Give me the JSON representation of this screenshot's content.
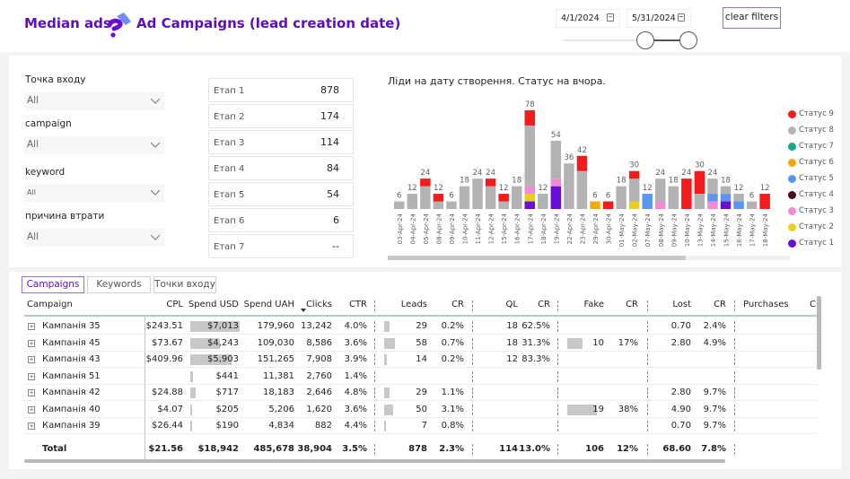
{
  "header": {
    "brand": "Median ads",
    "title": "Ad Campaigns (lead creation date)",
    "date_from": "4/1/2024",
    "date_to": "5/31/2024",
    "clear_filters": "clear filters",
    "accent_color": "#5b0fbe"
  },
  "slicers": [
    {
      "label": "Точка входу",
      "value": "All"
    },
    {
      "label": "campaign",
      "value": "All"
    },
    {
      "label": "keyword",
      "value": "All"
    },
    {
      "label": "причина втрати",
      "value": "All"
    }
  ],
  "stages": [
    {
      "label": "Етап 1",
      "value": "878"
    },
    {
      "label": "Етап 2",
      "value": "174"
    },
    {
      "label": "Етап 3",
      "value": "114"
    },
    {
      "label": "Етап 4",
      "value": "84"
    },
    {
      "label": "Етап 5",
      "value": "54"
    },
    {
      "label": "Етап 6",
      "value": "6"
    },
    {
      "label": "Етап 7",
      "value": "--"
    }
  ],
  "chart_data": {
    "type": "bar",
    "stacked": true,
    "title": "Ліди на дату створення. Статус на вчора.",
    "xlabel": "",
    "ylabel": "",
    "legend_position": "right",
    "categories": [
      "03-Apr-24",
      "04-Apr-24",
      "05-Apr-24",
      "08-Apr-24",
      "09-Apr-24",
      "10-Apr-24",
      "11-Apr-24",
      "12-Apr-24",
      "15-Apr-24",
      "16-Apr-24",
      "17-Apr-24",
      "18-Apr-24",
      "19-Apr-24",
      "22-Apr-24",
      "23-Apr-24",
      "29-Apr-24",
      "30-Apr-24",
      "01-May-24",
      "02-May-24",
      "07-May-24",
      "08-May-24",
      "09-May-24",
      "10-May-24",
      "13-May-24",
      "14-May-24",
      "15-May-24",
      "16-May-24",
      "17-May-24",
      "18-May-24"
    ],
    "totals": [
      6,
      12,
      24,
      12,
      6,
      18,
      24,
      24,
      12,
      18,
      78,
      12,
      54,
      36,
      42,
      6,
      6,
      18,
      30,
      12,
      24,
      18,
      24,
      30,
      24,
      18,
      12,
      6,
      12
    ],
    "series": [
      {
        "name": "Статус 1",
        "color": "#6a0dd6",
        "values": [
          0,
          0,
          0,
          0,
          0,
          0,
          0,
          0,
          0,
          0,
          6,
          0,
          18,
          0,
          0,
          0,
          0,
          0,
          0,
          0,
          0,
          0,
          0,
          0,
          0,
          6,
          0,
          0,
          0
        ]
      },
      {
        "name": "Статус 2",
        "color": "#e8cf20",
        "values": [
          0,
          0,
          0,
          0,
          0,
          0,
          0,
          0,
          0,
          0,
          6,
          0,
          0,
          0,
          0,
          0,
          0,
          0,
          6,
          0,
          0,
          0,
          0,
          0,
          0,
          0,
          0,
          0,
          0
        ]
      },
      {
        "name": "Статус 3",
        "color": "#f08bd6",
        "values": [
          0,
          0,
          0,
          0,
          0,
          0,
          0,
          0,
          0,
          0,
          6,
          0,
          6,
          0,
          0,
          0,
          0,
          0,
          0,
          0,
          6,
          0,
          0,
          0,
          6,
          0,
          0,
          0,
          0
        ]
      },
      {
        "name": "Статус 4",
        "color": "#4a0b1f",
        "values": [
          0,
          0,
          0,
          0,
          0,
          0,
          0,
          0,
          0,
          0,
          0,
          0,
          0,
          0,
          0,
          0,
          0,
          0,
          0,
          0,
          0,
          0,
          0,
          0,
          0,
          0,
          0,
          0,
          0
        ]
      },
      {
        "name": "Статус 5",
        "color": "#5b95f0",
        "values": [
          0,
          0,
          0,
          0,
          0,
          0,
          0,
          0,
          0,
          0,
          0,
          0,
          0,
          0,
          0,
          0,
          0,
          0,
          0,
          12,
          0,
          0,
          0,
          0,
          6,
          6,
          6,
          0,
          0
        ]
      },
      {
        "name": "Статус 6",
        "color": "#f5a80a",
        "values": [
          0,
          0,
          0,
          0,
          0,
          0,
          0,
          0,
          0,
          0,
          0,
          0,
          0,
          0,
          0,
          6,
          0,
          0,
          0,
          0,
          0,
          0,
          0,
          0,
          0,
          0,
          0,
          0,
          0
        ]
      },
      {
        "name": "Статус 7",
        "color": "#17a689",
        "values": [
          0,
          0,
          0,
          0,
          0,
          0,
          0,
          0,
          0,
          0,
          0,
          0,
          0,
          0,
          0,
          0,
          0,
          0,
          0,
          0,
          0,
          0,
          0,
          0,
          0,
          0,
          0,
          0,
          0
        ]
      },
      {
        "name": "Статус 8",
        "color": "#b3b3b3",
        "values": [
          6,
          12,
          18,
          6,
          6,
          18,
          24,
          18,
          6,
          18,
          48,
          12,
          30,
          36,
          30,
          0,
          0,
          18,
          18,
          0,
          18,
          18,
          0,
          12,
          12,
          6,
          6,
          6,
          0
        ]
      },
      {
        "name": "Статус 9",
        "color": "#f21c1c",
        "values": [
          0,
          0,
          6,
          6,
          0,
          0,
          0,
          6,
          6,
          0,
          12,
          0,
          0,
          0,
          12,
          0,
          6,
          0,
          6,
          0,
          0,
          0,
          24,
          18,
          0,
          0,
          0,
          0,
          12
        ]
      }
    ],
    "legend_order": [
      "Статус 9",
      "Статус 8",
      "Статус 7",
      "Статус 6",
      "Статус 5",
      "Статус 4",
      "Статус 3",
      "Статус 2",
      "Статус 1"
    ]
  },
  "tabs": [
    {
      "label": "Campaigns",
      "active": true
    },
    {
      "label": "Keywords",
      "active": false
    },
    {
      "label": "Точки входу",
      "active": false
    }
  ],
  "table": {
    "columns": [
      "Campaign",
      "CPL",
      "Spend USD",
      "Spend UAH",
      "Clicks",
      "CTR",
      "Leads",
      "CR",
      "QL",
      "CR",
      "Fake",
      "CR",
      "Lost",
      "CR",
      "Purchases",
      "C"
    ],
    "sorted_column": "Clicks",
    "rows": [
      {
        "name": "Кампанія 35",
        "cpl": "$243.51",
        "spend_usd": "$7,013",
        "spend_uah": "179,960",
        "clicks": "13,242",
        "ctr": "4.0%",
        "leads": "29",
        "leads_cr": "0.2%",
        "ql": "18",
        "ql_cr": "62.5%",
        "fake": "",
        "fake_cr": "",
        "lost": "0.70",
        "lost_cr": "2.4%",
        "purchases": "",
        "usd_ratio": 1.0,
        "leads_ratio": 0.5,
        "fake_ratio": 0
      },
      {
        "name": "Кампанія 45",
        "cpl": "$73.67",
        "spend_usd": "$4,243",
        "spend_uah": "109,030",
        "clicks": "8,586",
        "ctr": "3.6%",
        "leads": "58",
        "leads_cr": "0.7%",
        "ql": "18",
        "ql_cr": "31.3%",
        "fake": "10",
        "fake_cr": "17%",
        "lost": "2.80",
        "lost_cr": "4.9%",
        "purchases": "",
        "usd_ratio": 0.6,
        "leads_ratio": 1.0,
        "fake_ratio": 0.53
      },
      {
        "name": "Кампанія 43",
        "cpl": "$409.96",
        "spend_usd": "$5,903",
        "spend_uah": "151,265",
        "clicks": "7,908",
        "ctr": "3.9%",
        "leads": "14",
        "leads_cr": "0.2%",
        "ql": "12",
        "ql_cr": "83.3%",
        "fake": "",
        "fake_cr": "",
        "lost": "",
        "lost_cr": "",
        "purchases": "",
        "usd_ratio": 0.84,
        "leads_ratio": 0.24,
        "fake_ratio": 0
      },
      {
        "name": "Кампанія 51",
        "cpl": "",
        "spend_usd": "$441",
        "spend_uah": "11,381",
        "clicks": "2,760",
        "ctr": "1.4%",
        "leads": "",
        "leads_cr": "",
        "ql": "",
        "ql_cr": "",
        "fake": "",
        "fake_cr": "",
        "lost": "",
        "lost_cr": "",
        "purchases": "",
        "usd_ratio": 0.06,
        "leads_ratio": 0,
        "fake_ratio": 0
      },
      {
        "name": "Кампанія 42",
        "cpl": "$24.88",
        "spend_usd": "$717",
        "spend_uah": "18,183",
        "clicks": "2,646",
        "ctr": "4.8%",
        "leads": "29",
        "leads_cr": "1.1%",
        "ql": "",
        "ql_cr": "",
        "fake": "",
        "fake_cr": "",
        "lost": "2.80",
        "lost_cr": "9.7%",
        "purchases": "",
        "usd_ratio": 0.1,
        "leads_ratio": 0.5,
        "fake_ratio": 0
      },
      {
        "name": "Кампанія 40",
        "cpl": "$4.07",
        "spend_usd": "$205",
        "spend_uah": "5,206",
        "clicks": "1,620",
        "ctr": "3.6%",
        "leads": "50",
        "leads_cr": "3.1%",
        "ql": "",
        "ql_cr": "",
        "fake": "19",
        "fake_cr": "38%",
        "lost": "4.90",
        "lost_cr": "9.7%",
        "purchases": "",
        "usd_ratio": 0.03,
        "leads_ratio": 0.86,
        "fake_ratio": 1.0
      },
      {
        "name": "Кампанія 39",
        "cpl": "$26.44",
        "spend_usd": "$190",
        "spend_uah": "4,834",
        "clicks": "882",
        "ctr": "4.4%",
        "leads": "7",
        "leads_cr": "0.8%",
        "ql": "",
        "ql_cr": "",
        "fake": "",
        "fake_cr": "",
        "lost": "0.70",
        "lost_cr": "9.7%",
        "purchases": "",
        "usd_ratio": 0.03,
        "leads_ratio": 0.12,
        "fake_ratio": 0
      }
    ],
    "total": {
      "name": "Total",
      "cpl": "$21.56",
      "spend_usd": "$18,942",
      "spend_uah": "485,678",
      "clicks": "38,904",
      "ctr": "3.5%",
      "leads": "878",
      "leads_cr": "2.3%",
      "ql": "114",
      "ql_cr": "13.0%",
      "fake": "106",
      "fake_cr": "12%",
      "lost": "68.60",
      "lost_cr": "7.8%",
      "purchases": ""
    }
  }
}
